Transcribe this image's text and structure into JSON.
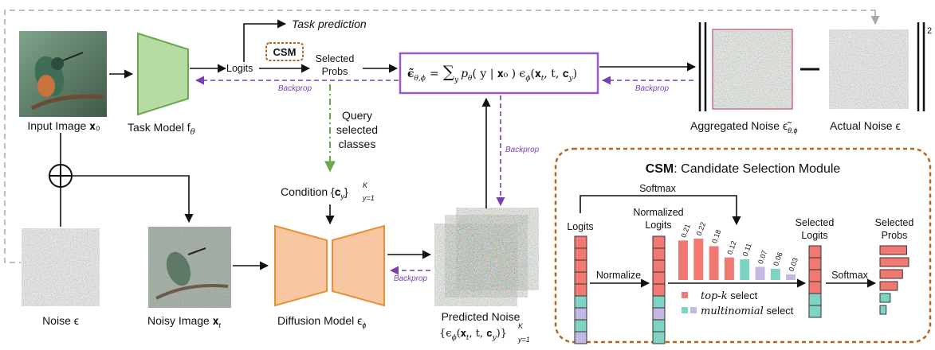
{
  "labels": {
    "task_prediction": "Task prediction",
    "logits": "Logits",
    "csm_badge": "CSM",
    "selected_probs_line1": "Selected",
    "selected_probs_line2": "Probs",
    "input_image": "Input Image 𝐱₀",
    "task_model": "Task Model f",
    "task_model_sub": "θ",
    "query_line1": "Query",
    "query_line2": "selected",
    "query_line3": "classes",
    "condition": "Condition {𝐜",
    "condition_sub": "y",
    "condition_close": "}",
    "condition_sup": "K",
    "condition_range": "y=1",
    "noise": "Noise ϵ",
    "noisy_image": "Noisy Image 𝐱",
    "noisy_image_sub": "t",
    "diffusion_model": "Diffusion Model ϵ",
    "diffusion_model_sub": "ϕ",
    "predicted_noise": "Predicted Noise",
    "predicted_noise_formula": "{ϵ",
    "predicted_noise_formula_sub": "ϕ",
    "predicted_noise_formula_rest": "(𝐱",
    "predicted_noise_formula_t": "t",
    "predicted_noise_formula_tail": ", t, 𝐜",
    "predicted_noise_formula_y": "y",
    "predicted_noise_formula_end": ")}",
    "predicted_noise_sup": "K",
    "predicted_noise_range": "y=1",
    "aggregated_noise": "Aggregated Noise ϵ̃",
    "aggregated_noise_sub": "θ,ϕ",
    "actual_noise": "Actual Noise ϵ",
    "norm_sup": "2",
    "backprop": "Backprop",
    "equation_lhs": "ϵ̃",
    "equation_lhs_sub": "θ,ϕ",
    "equation_eq": "=",
    "equation_sum": "∑",
    "equation_sum_sub": "y",
    "equation_p": "p",
    "equation_p_sub": "θ",
    "equation_cond": "( y | 𝐱₀ ) ϵ",
    "equation_eps_sub": "ϕ",
    "equation_args": "(𝐱",
    "equation_args_t": "t",
    "equation_args_rest": ", t, 𝐜",
    "equation_args_y": "y",
    "equation_args_end": ")"
  },
  "csm": {
    "title_bold": "CSM",
    "title_rest": ": Candidate Selection Module",
    "softmax_top": "Softmax",
    "logits": "Logits",
    "normalized_line1": "Normalized",
    "normalized_line2": "Logits",
    "normalize": "Normalize",
    "selected_logits_line1": "Selected",
    "selected_logits_line2": "Logits",
    "softmax": "Softmax",
    "selected_probs_line1": "Selected",
    "selected_probs_line2": "Probs",
    "topk_legend": "top-k",
    "topk_legend_rest": " select",
    "multinomial_legend": "multinomial",
    "multinomial_legend_rest": " select",
    "bar_values": [
      0.21,
      0.22,
      0.18,
      0.12,
      0.11,
      0.07,
      0.06,
      0.03
    ],
    "bar_labels": [
      "0.21",
      "0.22",
      "0.18",
      "0.12",
      "0.11",
      "0.07",
      "0.06",
      "0.03"
    ],
    "bar_kinds": [
      "topk",
      "topk",
      "topk",
      "topk",
      "multi",
      "multi",
      "multi",
      "multi"
    ],
    "selected_probs": [
      0.26,
      0.28,
      0.22,
      0.17,
      0.1,
      0.06
    ]
  },
  "colors": {
    "task_model": "#b7dca3",
    "task_model_stroke": "#6aa84f",
    "diffusion": "#f6c7a0",
    "diffusion_stroke": "#e69138",
    "equation_border": "#9b59d0",
    "backprop": "#7a3fb5",
    "query_arrow": "#6aa84f",
    "csm_border": "#b5651d",
    "red": "#f07a72",
    "teal": "#7fd3c3",
    "lavender": "#c3b7e3",
    "grey_dash": "#a9a9a9"
  }
}
